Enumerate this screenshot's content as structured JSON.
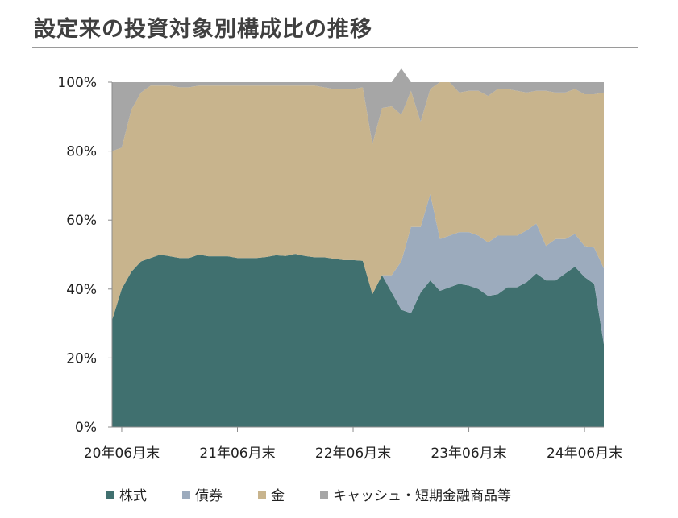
{
  "page": {
    "title": "設定来の投資対象別構成比の推移"
  },
  "chart_data": {
    "type": "area",
    "stacked": true,
    "title": "設定来の投資対象別構成比の推移",
    "xlabel": "",
    "ylabel": "",
    "ylim": [
      0,
      100
    ],
    "yticks": [
      "0%",
      "20%",
      "40%",
      "60%",
      "80%",
      "100%"
    ],
    "xtick_labels": [
      "20年06月末",
      "21年06月末",
      "22年06月末",
      "23年06月末",
      "24年06月末"
    ],
    "xtick_index": [
      1,
      13,
      25,
      37,
      49
    ],
    "colors": {
      "株式": "#40706f",
      "債券": "#9cabbd",
      "金": "#c8b48d",
      "キャッシュ・短期金融商品等": "#a6a6a6"
    },
    "series": [
      {
        "name": "株式",
        "values": [
          31,
          40,
          45,
          48,
          49,
          50,
          49.5,
          49,
          49,
          50,
          49.5,
          49.5,
          49.5,
          49,
          49,
          49,
          49.3,
          49.8,
          49.6,
          50.2,
          49.6,
          49.2,
          49.2,
          48.8,
          48.4,
          48.4,
          48.2,
          38.5,
          44,
          39,
          34,
          33,
          39,
          42.5,
          39.5,
          40.5,
          41.5,
          41,
          40,
          38,
          38.5,
          40.5,
          40.5,
          42,
          44.5,
          42.5,
          42.5,
          44.5,
          46.5,
          43.5,
          41.5,
          24
        ]
      },
      {
        "name": "債券",
        "values": [
          0,
          0,
          0,
          0,
          0,
          0,
          0,
          0,
          0,
          0,
          0,
          0,
          0,
          0,
          0,
          0,
          0,
          0,
          0,
          0,
          0,
          0,
          0,
          0,
          0,
          0,
          0,
          0,
          0,
          5,
          14,
          25,
          19,
          25,
          15,
          15,
          15,
          15.5,
          15.5,
          15.5,
          17,
          15,
          15,
          15,
          14.5,
          10,
          12,
          10,
          9.5,
          9,
          10.5,
          22
        ]
      },
      {
        "name": "金",
        "values": [
          49,
          41,
          47,
          49,
          50,
          49,
          49.5,
          49.5,
          49.5,
          49,
          49.5,
          49.5,
          49.5,
          50,
          50,
          50,
          49.7,
          49.2,
          49.4,
          48.8,
          49.4,
          49.8,
          49.3,
          49.2,
          49.6,
          49.6,
          50.3,
          43.5,
          48.5,
          49,
          42.5,
          39.5,
          30.5,
          30.5,
          45.5,
          44.5,
          40.5,
          41,
          42,
          42.5,
          42.5,
          42.5,
          42,
          40,
          38.5,
          45,
          42.5,
          42.5,
          42,
          44,
          44.5,
          51
        ]
      },
      {
        "name": "キャッシュ・短期金融商品等",
        "values": [
          20,
          19,
          8,
          3,
          1,
          1,
          1,
          1.5,
          1.5,
          1,
          1,
          1,
          1,
          1,
          1,
          1,
          1,
          1,
          1,
          1,
          1,
          1,
          1.5,
          2,
          2,
          2,
          1.5,
          18,
          7.5,
          7,
          13.5,
          2.5,
          11.5,
          2,
          0,
          0,
          3,
          2.5,
          2.5,
          4,
          2,
          2,
          2.5,
          3,
          2.5,
          2.5,
          3,
          3,
          2,
          3.5,
          3.5,
          3
        ]
      }
    ]
  }
}
